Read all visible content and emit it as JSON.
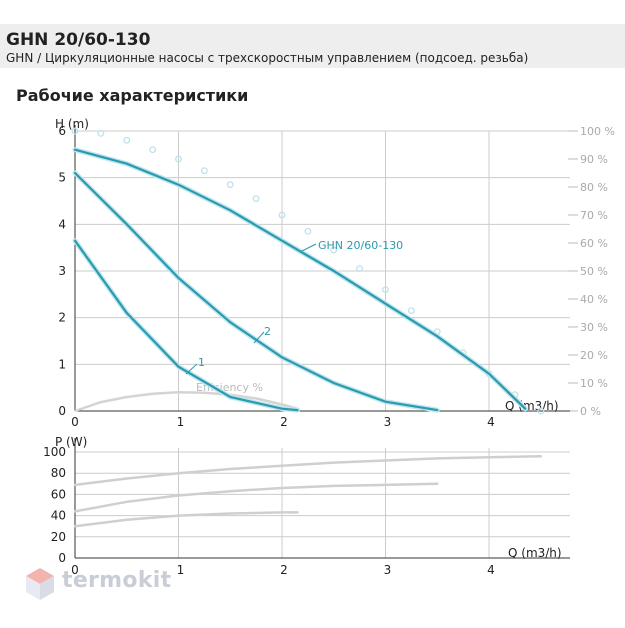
{
  "header": {
    "title": "GHN 20/60-130",
    "subtitle": "GHN / Циркуляционные насосы с трехскоростным управлением (подсоед. резьба)"
  },
  "section_title": "Рабочие характеристики",
  "watermark": {
    "text": "termokit",
    "logo_icon": "cube-logo-icon"
  },
  "colors": {
    "pump_curve": "#2a9aae",
    "efficiency_marker": "#bfe2ea",
    "grid": "#cccccc",
    "power_curve": "#cfcfcf",
    "efficiency_curve": "#d4d4d4"
  },
  "chart_data": [
    {
      "type": "line",
      "ylabel": "H (m)",
      "xlabel": "Q (m3/h)",
      "xlim": [
        0,
        4.5
      ],
      "ylim": [
        0,
        6
      ],
      "x_ticks": [
        "0",
        "1",
        "2",
        "3",
        "4"
      ],
      "y_ticks": [
        "0",
        "1",
        "2",
        "3",
        "4",
        "5",
        "6"
      ],
      "y2_ticks": [
        "0 %",
        "10 %",
        "20 %",
        "30 %",
        "40 %",
        "50 %",
        "60 %",
        "70 %",
        "80 %",
        "90 %",
        "100 %"
      ],
      "grid": true,
      "series": [
        {
          "name": "GHN 20/60-130",
          "x": [
            0,
            0.5,
            1,
            1.5,
            2,
            2.5,
            3,
            3.5,
            4,
            4.35
          ],
          "y": [
            5.6,
            5.3,
            4.85,
            4.3,
            3.65,
            3.0,
            2.3,
            1.6,
            0.8,
            0.05
          ]
        },
        {
          "name": "2",
          "x": [
            0,
            0.5,
            1,
            1.5,
            2,
            2.5,
            3,
            3.5
          ],
          "y": [
            5.1,
            4.0,
            2.85,
            1.9,
            1.15,
            0.6,
            0.2,
            0.02
          ]
        },
        {
          "name": "1",
          "x": [
            0,
            0.5,
            1,
            1.5,
            2,
            2.15
          ],
          "y": [
            3.65,
            2.1,
            0.95,
            0.3,
            0.05,
            0.02
          ]
        },
        {
          "name": "",
          "x": [
            0,
            0.25,
            0.5,
            0.75,
            1,
            1.25,
            1.5,
            1.75,
            2,
            2.25,
            2.5,
            2.75,
            3,
            3.25,
            3.5,
            3.75,
            4,
            4.25,
            4.5
          ],
          "y": [
            6.0,
            5.95,
            5.8,
            5.6,
            5.4,
            5.15,
            4.85,
            4.55,
            4.2,
            3.85,
            3.45,
            3.05,
            2.6,
            2.15,
            1.7,
            1.25,
            0.8,
            0.35,
            0.0
          ]
        },
        {
          "name": "Efficiency %",
          "x": [
            0,
            0.25,
            0.5,
            0.75,
            1,
            1.25,
            1.5,
            1.75,
            2.0,
            2.15
          ],
          "y": [
            0.0,
            0.19,
            0.3,
            0.37,
            0.4,
            0.39,
            0.35,
            0.27,
            0.14,
            0.05
          ]
        }
      ]
    },
    {
      "type": "line",
      "ylabel": "P (W)",
      "xlabel": "Q (m3/h)",
      "xlim": [
        0,
        4.5
      ],
      "ylim": [
        0,
        100
      ],
      "x_ticks": [
        "0",
        "1",
        "2",
        "3",
        "4"
      ],
      "y_ticks": [
        "0",
        "20",
        "40",
        "60",
        "80",
        "100"
      ],
      "grid": true,
      "series": [
        {
          "name": "",
          "x": [
            0,
            0.5,
            1,
            1.5,
            2,
            2.5,
            3,
            3.5,
            4,
            4.5
          ],
          "y": [
            69,
            75,
            80,
            84,
            87,
            90,
            92,
            94,
            95,
            96
          ]
        },
        {
          "name": "",
          "x": [
            0,
            0.5,
            1,
            1.5,
            2,
            2.5,
            3,
            3.5
          ],
          "y": [
            44,
            53,
            59,
            63,
            66,
            68,
            69,
            70
          ]
        },
        {
          "name": "",
          "x": [
            0,
            0.5,
            1,
            1.5,
            2,
            2.15
          ],
          "y": [
            30,
            36,
            40,
            42,
            43,
            43
          ]
        }
      ]
    }
  ]
}
